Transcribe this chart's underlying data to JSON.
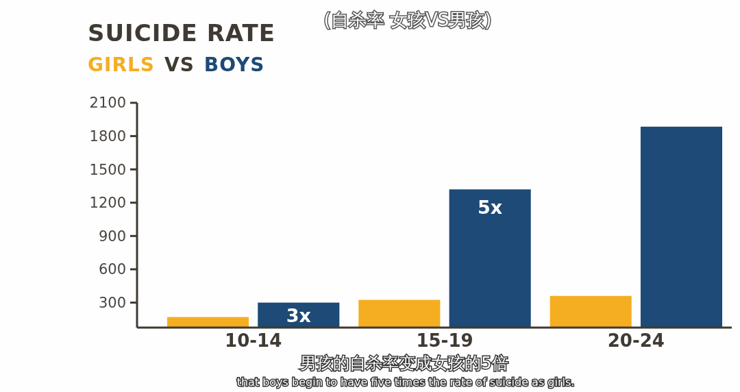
{
  "chart_data": {
    "type": "bar",
    "title": "SUICIDE RATE",
    "subtitle": "VS",
    "legend": "top left",
    "categories": [
      "10-14",
      "15-19",
      "20-24"
    ],
    "series": [
      {
        "name": "GIRLS",
        "color": "#f5ae22",
        "values": [
          170,
          325,
          360
        ]
      },
      {
        "name": "BOYS",
        "color": "#1d4a76",
        "values": [
          300,
          1320,
          1885
        ]
      }
    ],
    "ylim": [
      75,
      2100
    ],
    "yticks": [
      300,
      600,
      900,
      1200,
      1500,
      1800,
      2100
    ],
    "grid": false,
    "annotations": [
      "3x",
      "5x",
      "(自杀率 女孩VS男孩)",
      "男孩的自杀率变成女孩的5倍",
      "that boys begin to have five times the rate of suicide as girls."
    ]
  }
}
